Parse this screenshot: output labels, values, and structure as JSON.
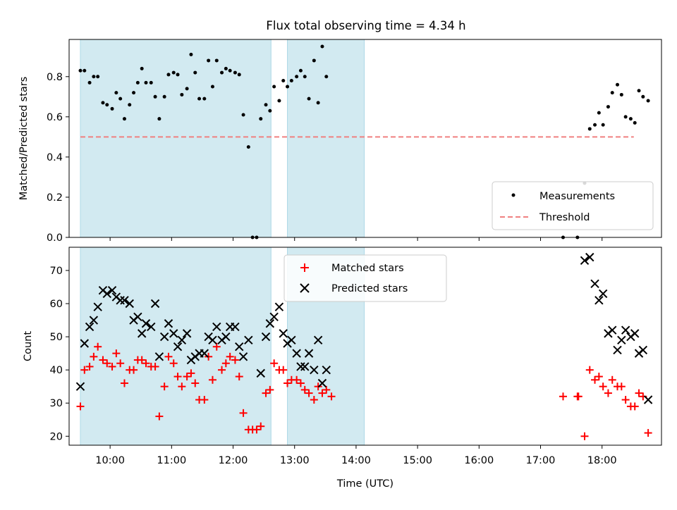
{
  "title": "Flux total observing time = 4.34 h",
  "colors": {
    "shade": "#add8e6",
    "threshold": "#f08080",
    "matched": "#ff0000",
    "predicted": "#000000",
    "measure": "#000000"
  },
  "chart_data": [
    {
      "type": "scatter",
      "panel": "top",
      "title": "Flux total observing time = 4.34 h",
      "xlabel": "",
      "ylabel": "Matched/Predicted stars",
      "xlim": [
        "09:20",
        "18:58"
      ],
      "ylim": [
        0.0,
        0.985
      ],
      "yticks": [
        "0.0",
        "0.2",
        "0.4",
        "0.6",
        "0.8"
      ],
      "legend": "lower-right",
      "shaded_intervals": [
        [
          "09:31",
          "12:37"
        ],
        [
          "12:53",
          "14:08"
        ]
      ],
      "threshold": {
        "name": "Threshold",
        "value": 0.5,
        "x_range": [
          "09:31",
          "18:31"
        ],
        "style": "dashed"
      },
      "series": [
        {
          "name": "Measurements",
          "marker": "dot",
          "points": [
            [
              "09:31",
              0.83
            ],
            [
              "09:35",
              0.83
            ],
            [
              "09:40",
              0.77
            ],
            [
              "09:44",
              0.8
            ],
            [
              "09:48",
              0.8
            ],
            [
              "09:53",
              0.67
            ],
            [
              "09:57",
              0.66
            ],
            [
              "10:02",
              0.64
            ],
            [
              "10:06",
              0.72
            ],
            [
              "10:10",
              0.69
            ],
            [
              "10:14",
              0.59
            ],
            [
              "10:19",
              0.66
            ],
            [
              "10:23",
              0.72
            ],
            [
              "10:27",
              0.77
            ],
            [
              "10:31",
              0.84
            ],
            [
              "10:35",
              0.77
            ],
            [
              "10:40",
              0.77
            ],
            [
              "10:44",
              0.7
            ],
            [
              "10:48",
              0.59
            ],
            [
              "10:53",
              0.7
            ],
            [
              "10:57",
              0.81
            ],
            [
              "11:02",
              0.82
            ],
            [
              "11:06",
              0.81
            ],
            [
              "11:10",
              0.71
            ],
            [
              "11:15",
              0.74
            ],
            [
              "11:19",
              0.91
            ],
            [
              "11:23",
              0.82
            ],
            [
              "11:27",
              0.69
            ],
            [
              "11:32",
              0.69
            ],
            [
              "11:36",
              0.88
            ],
            [
              "11:40",
              0.75
            ],
            [
              "11:44",
              0.88
            ],
            [
              "11:49",
              0.82
            ],
            [
              "11:53",
              0.84
            ],
            [
              "11:57",
              0.83
            ],
            [
              "12:02",
              0.82
            ],
            [
              "12:06",
              0.81
            ],
            [
              "12:10",
              0.61
            ],
            [
              "12:15",
              0.45
            ],
            [
              "12:19",
              0.0
            ],
            [
              "12:23",
              0.0
            ],
            [
              "12:27",
              0.59
            ],
            [
              "12:32",
              0.66
            ],
            [
              "12:36",
              0.63
            ],
            [
              "12:40",
              0.75
            ],
            [
              "12:45",
              0.68
            ],
            [
              "12:49",
              0.78
            ],
            [
              "12:53",
              0.75
            ],
            [
              "12:57",
              0.78
            ],
            [
              "13:02",
              0.8
            ],
            [
              "13:06",
              0.83
            ],
            [
              "13:10",
              0.8
            ],
            [
              "13:14",
              0.69
            ],
            [
              "13:19",
              0.88
            ],
            [
              "13:23",
              0.67
            ],
            [
              "13:27",
              0.95
            ],
            [
              "13:31",
              0.8
            ],
            [
              "17:22",
              0.0
            ],
            [
              "17:36",
              0.0
            ],
            [
              "17:43",
              0.27
            ],
            [
              "17:48",
              0.54
            ],
            [
              "17:53",
              0.56
            ],
            [
              "17:57",
              0.62
            ],
            [
              "18:01",
              0.56
            ],
            [
              "18:06",
              0.65
            ],
            [
              "18:10",
              0.72
            ],
            [
              "18:15",
              0.76
            ],
            [
              "18:19",
              0.71
            ],
            [
              "18:23",
              0.6
            ],
            [
              "18:28",
              0.59
            ],
            [
              "18:32",
              0.57
            ],
            [
              "18:36",
              0.73
            ],
            [
              "18:40",
              0.7
            ],
            [
              "18:45",
              0.68
            ]
          ]
        }
      ]
    },
    {
      "type": "scatter",
      "panel": "bottom",
      "xlabel": "Time (UTC)",
      "ylabel": "Count",
      "xlim": [
        "09:20",
        "18:58"
      ],
      "ylim": [
        17.3,
        77.0
      ],
      "yticks": [
        "20",
        "30",
        "40",
        "50",
        "60",
        "70"
      ],
      "xticks": [
        "10:00",
        "11:00",
        "12:00",
        "13:00",
        "14:00",
        "15:00",
        "16:00",
        "17:00",
        "18:00"
      ],
      "legend": "upper-center",
      "shaded_intervals": [
        [
          "09:31",
          "12:37"
        ],
        [
          "12:53",
          "14:08"
        ]
      ],
      "series": [
        {
          "name": "Matched stars",
          "marker": "plus",
          "points": [
            [
              "09:31",
              29
            ],
            [
              "09:35",
              40
            ],
            [
              "09:40",
              41
            ],
            [
              "09:44",
              44
            ],
            [
              "09:48",
              47
            ],
            [
              "09:53",
              43
            ],
            [
              "09:57",
              42
            ],
            [
              "10:02",
              41
            ],
            [
              "10:06",
              45
            ],
            [
              "10:10",
              42
            ],
            [
              "10:14",
              36
            ],
            [
              "10:19",
              40
            ],
            [
              "10:23",
              40
            ],
            [
              "10:27",
              43
            ],
            [
              "10:31",
              43
            ],
            [
              "10:35",
              42
            ],
            [
              "10:40",
              41
            ],
            [
              "10:44",
              41
            ],
            [
              "10:48",
              26
            ],
            [
              "10:53",
              35
            ],
            [
              "10:57",
              44
            ],
            [
              "11:02",
              42
            ],
            [
              "11:06",
              38
            ],
            [
              "11:10",
              35
            ],
            [
              "11:15",
              38
            ],
            [
              "11:19",
              39
            ],
            [
              "11:23",
              36
            ],
            [
              "11:27",
              31
            ],
            [
              "11:32",
              31
            ],
            [
              "11:36",
              44
            ],
            [
              "11:40",
              37
            ],
            [
              "11:44",
              47
            ],
            [
              "11:49",
              40
            ],
            [
              "11:53",
              42
            ],
            [
              "11:57",
              44
            ],
            [
              "12:02",
              43
            ],
            [
              "12:06",
              38
            ],
            [
              "12:10",
              27
            ],
            [
              "12:15",
              22
            ],
            [
              "12:19",
              22
            ],
            [
              "12:23",
              22
            ],
            [
              "12:27",
              23
            ],
            [
              "12:32",
              33
            ],
            [
              "12:36",
              34
            ],
            [
              "12:40",
              42
            ],
            [
              "12:45",
              40
            ],
            [
              "12:49",
              40
            ],
            [
              "12:53",
              36
            ],
            [
              "12:57",
              37
            ],
            [
              "13:02",
              37
            ],
            [
              "13:06",
              36
            ],
            [
              "13:10",
              34
            ],
            [
              "13:14",
              33
            ],
            [
              "13:19",
              31
            ],
            [
              "13:23",
              35
            ],
            [
              "13:27",
              33
            ],
            [
              "13:31",
              34
            ],
            [
              "13:36",
              32
            ],
            [
              "17:22",
              32
            ],
            [
              "17:36",
              32
            ],
            [
              "17:37",
              32
            ],
            [
              "17:43",
              20
            ],
            [
              "17:48",
              40
            ],
            [
              "17:53",
              37
            ],
            [
              "17:57",
              38
            ],
            [
              "18:01",
              35
            ],
            [
              "18:06",
              33
            ],
            [
              "18:10",
              37
            ],
            [
              "18:15",
              35
            ],
            [
              "18:19",
              35
            ],
            [
              "18:23",
              31
            ],
            [
              "18:28",
              29
            ],
            [
              "18:32",
              29
            ],
            [
              "18:36",
              33
            ],
            [
              "18:40",
              32
            ],
            [
              "18:45",
              21
            ]
          ]
        },
        {
          "name": "Predicted stars",
          "marker": "x",
          "points": [
            [
              "09:31",
              35
            ],
            [
              "09:35",
              48
            ],
            [
              "09:40",
              53
            ],
            [
              "09:44",
              55
            ],
            [
              "09:48",
              59
            ],
            [
              "09:53",
              64
            ],
            [
              "09:57",
              63
            ],
            [
              "10:02",
              64
            ],
            [
              "10:06",
              62
            ],
            [
              "10:10",
              61
            ],
            [
              "10:14",
              61
            ],
            [
              "10:19",
              60
            ],
            [
              "10:23",
              55
            ],
            [
              "10:27",
              56
            ],
            [
              "10:31",
              51
            ],
            [
              "10:35",
              54
            ],
            [
              "10:40",
              53
            ],
            [
              "10:44",
              60
            ],
            [
              "10:48",
              44
            ],
            [
              "10:53",
              50
            ],
            [
              "10:57",
              54
            ],
            [
              "11:02",
              51
            ],
            [
              "11:06",
              47
            ],
            [
              "11:10",
              49
            ],
            [
              "11:15",
              51
            ],
            [
              "11:19",
              43
            ],
            [
              "11:23",
              44
            ],
            [
              "11:27",
              45
            ],
            [
              "11:32",
              45
            ],
            [
              "11:36",
              50
            ],
            [
              "11:40",
              49
            ],
            [
              "11:44",
              53
            ],
            [
              "11:49",
              49
            ],
            [
              "11:53",
              50
            ],
            [
              "11:57",
              53
            ],
            [
              "12:02",
              53
            ],
            [
              "12:06",
              47
            ],
            [
              "12:10",
              44
            ],
            [
              "12:15",
              49
            ],
            [
              "12:27",
              39
            ],
            [
              "12:32",
              50
            ],
            [
              "12:36",
              54
            ],
            [
              "12:40",
              56
            ],
            [
              "12:45",
              59
            ],
            [
              "12:49",
              51
            ],
            [
              "12:53",
              48
            ],
            [
              "12:57",
              49
            ],
            [
              "13:02",
              45
            ],
            [
              "13:06",
              41
            ],
            [
              "13:10",
              41
            ],
            [
              "13:14",
              45
            ],
            [
              "13:19",
              40
            ],
            [
              "13:23",
              49
            ],
            [
              "13:27",
              36
            ],
            [
              "13:31",
              40
            ],
            [
              "17:43",
              73
            ],
            [
              "17:48",
              74
            ],
            [
              "17:53",
              66
            ],
            [
              "17:57",
              61
            ],
            [
              "18:01",
              63
            ],
            [
              "18:06",
              51
            ],
            [
              "18:10",
              52
            ],
            [
              "18:15",
              46
            ],
            [
              "18:19",
              49
            ],
            [
              "18:23",
              52
            ],
            [
              "18:28",
              50
            ],
            [
              "18:32",
              51
            ],
            [
              "18:36",
              45
            ],
            [
              "18:40",
              46
            ],
            [
              "18:45",
              31
            ]
          ]
        }
      ]
    }
  ]
}
